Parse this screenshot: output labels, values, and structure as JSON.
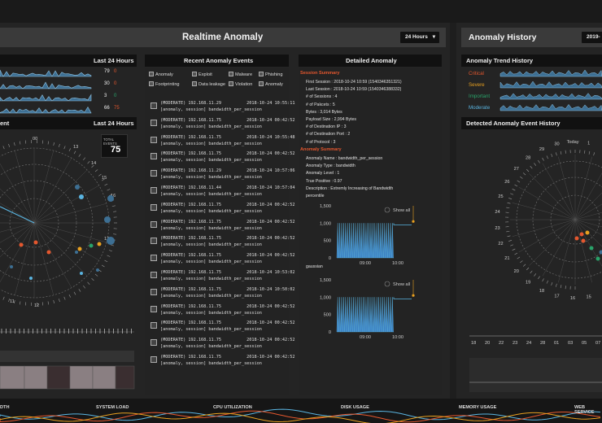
{
  "header": {
    "realtime_title": "Realtime Anomaly",
    "range_select": "24 Hours",
    "history_title": "Anomaly History",
    "history_date": "2019-"
  },
  "left_column": {
    "last24_title": "Last 24 Hours",
    "rows": [
      {
        "value": "79",
        "delta": "0",
        "delta_color": "#e4572e"
      },
      {
        "value": "30",
        "delta": "0",
        "delta_color": "#e4572e"
      },
      {
        "value": "3",
        "delta": "0",
        "delta_color": "#29a36a"
      },
      {
        "value": "66",
        "delta": "75",
        "delta_color": "#e4572e"
      }
    ],
    "radar_title_fragment": "ent",
    "radar_range": "Last 24 Hours",
    "total_events_label": "TOTAL EVENTS",
    "total_events_value": "75",
    "radar_hours": [
      "00",
      "13",
      "14",
      "15",
      "16",
      "13",
      "12",
      "11"
    ]
  },
  "events": {
    "title": "Recent Anomaly Events",
    "legend": [
      "Anomaly",
      "Exploit",
      "Malware",
      "Phishing",
      "Footprinting",
      "Data leakage",
      "Violation",
      "Anomaly"
    ],
    "list": [
      {
        "l1": "(MODERATE) 192.168.11.29          2018-10-24 10:55:11",
        "l2": "[anomaly, session] bandwidth_per_session"
      },
      {
        "l1": "(MODERATE) 192.168.11.75          2018-10-24 00:42:52",
        "l2": "[anomaly, session] bandwidth_per_session"
      },
      {
        "l1": "(MODERATE) 192.168.11.75          2018-10-24 10:55:48",
        "l2": "[anomaly, session] bandwidth_per_session"
      },
      {
        "l1": "(MODERATE) 192.168.11.75          2018-10-24 00:42:52",
        "l2": "[anomaly, session] bandwidth_per_session"
      },
      {
        "l1": "(MODERATE) 192.168.11.29          2018-10-24 10:57:06",
        "l2": "[anomaly, session] bandwidth_per_session"
      },
      {
        "l1": "(MODERATE) 192.168.11.44          2018-10-24 10:57:04",
        "l2": "[anomaly, session] bandwidth_per_session"
      },
      {
        "l1": "(MODERATE) 192.168.11.75          2018-10-24 00:42:52",
        "l2": "[anomaly, session] bandwidth_per_session"
      },
      {
        "l1": "(MODERATE) 192.168.11.75          2018-10-24 00:42:52",
        "l2": "[anomaly, session] bandwidth_per_session"
      },
      {
        "l1": "(MODERATE) 192.168.11.75          2018-10-24 00:42:52",
        "l2": "[anomaly, session] bandwidth_per_session"
      },
      {
        "l1": "(MODERATE) 192.168.11.75          2018-10-24 00:42:52",
        "l2": "[anomaly, session] bandwidth_per_session"
      },
      {
        "l1": "(MODERATE) 192.168.11.75          2018-10-24 10:53:02",
        "l2": "[anomaly, session] bandwidth_per_session"
      },
      {
        "l1": "(MODERATE) 192.168.11.75          2018-10-24 10:50:02",
        "l2": "[anomaly, session] bandwidth_per_session"
      },
      {
        "l1": "(MODERATE) 192.168.11.75          2018-10-24 00:42:52",
        "l2": "[anomaly, session] bandwidth_per_session"
      },
      {
        "l1": "(MODERATE) 192.168.11.75          2018-10-24 00:42:52",
        "l2": "[anomaly, session] bandwidth_per_session"
      },
      {
        "l1": "(MODERATE) 192.168.11.75          2018-10-24 00:42:52",
        "l2": "[anomaly, session] bandwidth_per_session"
      },
      {
        "l1": "(MODERATE) 192.168.11.75          2018-10-24 00:42:52",
        "l2": "[anomaly, session] bandwidth_per_session"
      }
    ]
  },
  "detail": {
    "title": "Detailed Anomaly",
    "session_summary_label": "Session Summary",
    "session_lines": [
      "First Session : 2018-10-24 10:59 (1540346351321)",
      "Last Session : 2018-10-24 10:59 (1540346388332)",
      "# of Sessions : 4",
      "# of Pakcets : 5",
      "Bytes : 3,014 Bytes",
      "Payload Size : 2,994 Bytes",
      "# of Destination IP : 3",
      "# of Destination Port : 2",
      "# of Protocol : 3"
    ],
    "anomaly_summary_label": "Anomaly Summary",
    "anomaly_lines": [
      "Anomaly Name : bandwidth_per_session",
      "Anomaly Type : bandwidth",
      "Anomaly Level : 1",
      "True Positive : 0.97",
      "Description : Extremly Increasing of Bandwidth",
      "percentile"
    ],
    "gaussian_label": "gaussian",
    "zoom_label": "Show all"
  },
  "history": {
    "trend_title": "Anomaly Trend History",
    "trend_labels": [
      {
        "label": "Critical",
        "color": "#e4572e"
      },
      {
        "label": "Severe",
        "color": "#e8a020"
      },
      {
        "label": "Important",
        "color": "#29a36a"
      },
      {
        "label": "Moderate",
        "color": "#5ab4e0"
      }
    ],
    "detected_title": "Detected Anomaly Event History",
    "days": [
      "15",
      "16",
      "17",
      "18",
      "19",
      "20",
      "21",
      "22",
      "23",
      "24",
      "25",
      "26",
      "27",
      "28",
      "29",
      "30",
      "Today",
      "1"
    ],
    "bottom_ticks": [
      "18",
      "20",
      "22",
      "23",
      "24",
      "28",
      "01",
      "03",
      "05",
      "07"
    ]
  },
  "bottom": {
    "labels": [
      "DTH",
      "SYSTEM LOAD",
      "CPU UTILIZATION",
      "DISK USAGE",
      "MEMORY USAGE",
      "WEB SERVICE"
    ]
  },
  "chart_data": [
    {
      "type": "line",
      "title": "",
      "x": [
        "09:00",
        "10:00"
      ],
      "ylabel": "",
      "ylim": [
        0,
        1500
      ],
      "yticks": [
        "1,500",
        "1,000",
        "500",
        "0"
      ]
    },
    {
      "type": "line",
      "title": "gaussian",
      "x": [
        "09:00",
        "10:00"
      ],
      "ylim": [
        0,
        1500
      ],
      "yticks": [
        "1,500",
        "1,000",
        "500",
        "0"
      ]
    }
  ]
}
